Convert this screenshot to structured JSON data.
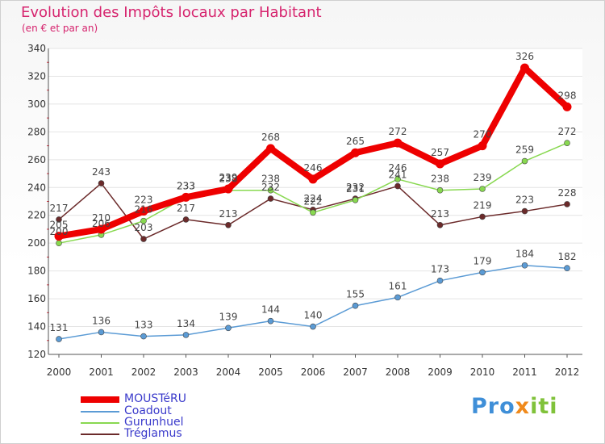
{
  "chart_data": {
    "type": "line",
    "title": "Evolution des Impôts locaux par Habitant",
    "subtitle": "(en € et par an)",
    "xlabel": "",
    "ylabel": "",
    "ylim": [
      120,
      340
    ],
    "y_ticks": [
      "340",
      "320",
      "300",
      "280",
      "260",
      "240",
      "220",
      "200",
      "180",
      "160",
      "140",
      "120"
    ],
    "categories": [
      "2000",
      "2001",
      "2002",
      "2003",
      "2004",
      "2005",
      "2006",
      "2007",
      "2008",
      "2009",
      "2010",
      "2011",
      "2012"
    ],
    "series": [
      {
        "name": "MOUSTéRU",
        "color": "#ee0000",
        "values": [
          205,
          210,
          223,
          233,
          239,
          268,
          246,
          265,
          272,
          257,
          270,
          326,
          298
        ]
      },
      {
        "name": "Coadout",
        "color": "#5b9bd5",
        "values": [
          131,
          136,
          133,
          134,
          139,
          144,
          140,
          155,
          161,
          173,
          179,
          184,
          182
        ]
      },
      {
        "name": "Gurunhuel",
        "color": "#88d850",
        "values": [
          200,
          206,
          216,
          233,
          238,
          238,
          222,
          231,
          246,
          238,
          239,
          259,
          272
        ]
      },
      {
        "name": "Tréglamus",
        "color": "#6b2a2a",
        "values": [
          217,
          243,
          203,
          217,
          213,
          232,
          224,
          232,
          241,
          213,
          219,
          223,
          228
        ]
      }
    ]
  },
  "brand": {
    "part1": "Pro",
    "x": "x",
    "part2": "iti"
  }
}
